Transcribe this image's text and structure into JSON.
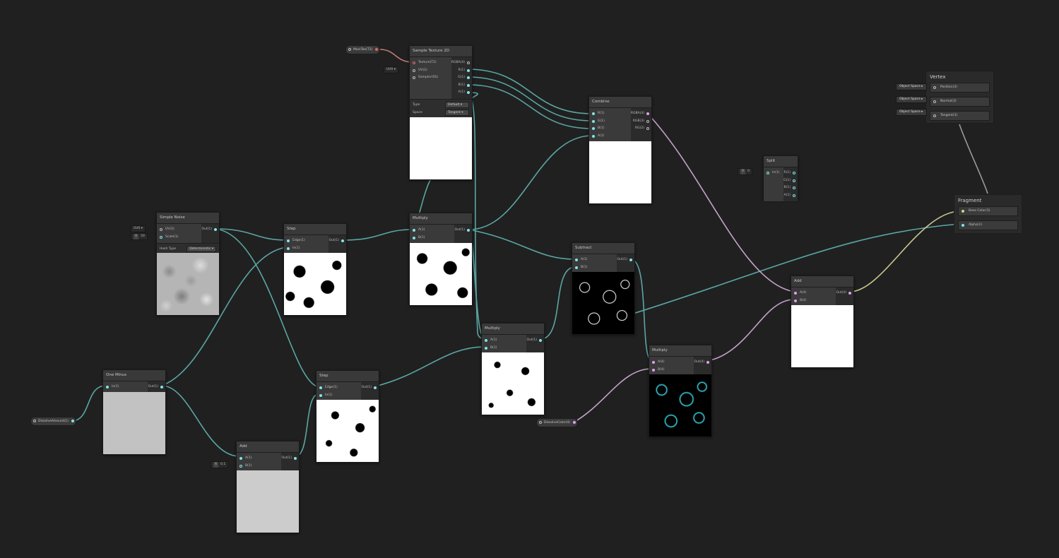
{
  "colors": {
    "background": "#202020",
    "wire_float": "#5aa7a4",
    "wire_vector": "#c4a3c9",
    "wire_color": "#c8c78e",
    "port_float": "#84e4e7",
    "port_vector": "#e2a0ee"
  },
  "sample_texture": {
    "title": "Sample Texture 2D",
    "inputs": [
      "Texture(T2)",
      "UV(2)",
      "Sampler(SS)"
    ],
    "outputs": [
      "RGBA(4)",
      "R(1)",
      "G(1)",
      "B(1)",
      "A(1)"
    ],
    "type_label": "Type",
    "type_value": "Default",
    "space_label": "Space",
    "space_value": "Tangent"
  },
  "main_tex": {
    "label": "MainTex(T2)"
  },
  "uv_field": {
    "value": "UV0"
  },
  "combine": {
    "title": "Combine",
    "inputs": [
      "R(1)",
      "G(1)",
      "B(1)",
      "A(1)"
    ],
    "outputs": [
      "RGBA(4)",
      "RGB(3)",
      "RG(2)"
    ]
  },
  "vertex": {
    "title": "Vertex",
    "blocks": [
      "Position(3)",
      "Normal(3)",
      "Tangent(3)"
    ],
    "space": "Object Space"
  },
  "fragment": {
    "title": "Fragment",
    "blocks": [
      "Base Color(3)",
      "Alpha(1)"
    ]
  },
  "split": {
    "title": "Split",
    "inputs": [
      "In(1)"
    ],
    "outputs": [
      "R(1)",
      "G(1)",
      "B(1)",
      "A(1)"
    ],
    "field_x": "X",
    "field_value": "0"
  },
  "simple_noise": {
    "title": "Simple Noise",
    "inputs": [
      "UV(2)",
      "Scale(1)"
    ],
    "outputs": [
      "Out(1)"
    ],
    "uv_value": "UV0",
    "scale_x": "X",
    "scale_value": "50",
    "hash_label": "Hash Type",
    "hash_value": "Deterministic"
  },
  "step1": {
    "title": "Step",
    "inputs": [
      "Edge(1)",
      "In(1)"
    ],
    "outputs": [
      "Out(1)"
    ]
  },
  "multiply1": {
    "title": "Multiply",
    "inputs": [
      "A(1)",
      "B(1)"
    ],
    "outputs": [
      "Out(1)"
    ]
  },
  "subtract": {
    "title": "Subtract",
    "inputs": [
      "A(1)",
      "B(1)"
    ],
    "outputs": [
      "Out(1)"
    ]
  },
  "multiply2": {
    "title": "Multiply",
    "inputs": [
      "A(1)",
      "B(1)"
    ],
    "outputs": [
      "Out(1)"
    ]
  },
  "add_right": {
    "title": "Add",
    "inputs": [
      "A(4)",
      "B(4)"
    ],
    "outputs": [
      "Out(4)"
    ]
  },
  "multiply3": {
    "title": "Multiply",
    "inputs": [
      "A(4)",
      "B(4)"
    ],
    "outputs": [
      "Out(4)"
    ]
  },
  "one_minus": {
    "title": "One Minus",
    "inputs": [
      "In(1)"
    ],
    "outputs": [
      "Out(1)"
    ]
  },
  "step2": {
    "title": "Step",
    "inputs": [
      "Edge(1)",
      "In(1)"
    ],
    "outputs": [
      "Out(1)"
    ]
  },
  "add_bottom": {
    "title": "Add",
    "inputs": [
      "A(1)",
      "B(1)"
    ],
    "outputs": [
      "Out(1)"
    ],
    "b_x": "X",
    "b_value": "0.1"
  },
  "dissolve_amount": {
    "label": "DissolveAmount(1)"
  },
  "dissolve_color": {
    "label": "DissolveColor(4)"
  }
}
